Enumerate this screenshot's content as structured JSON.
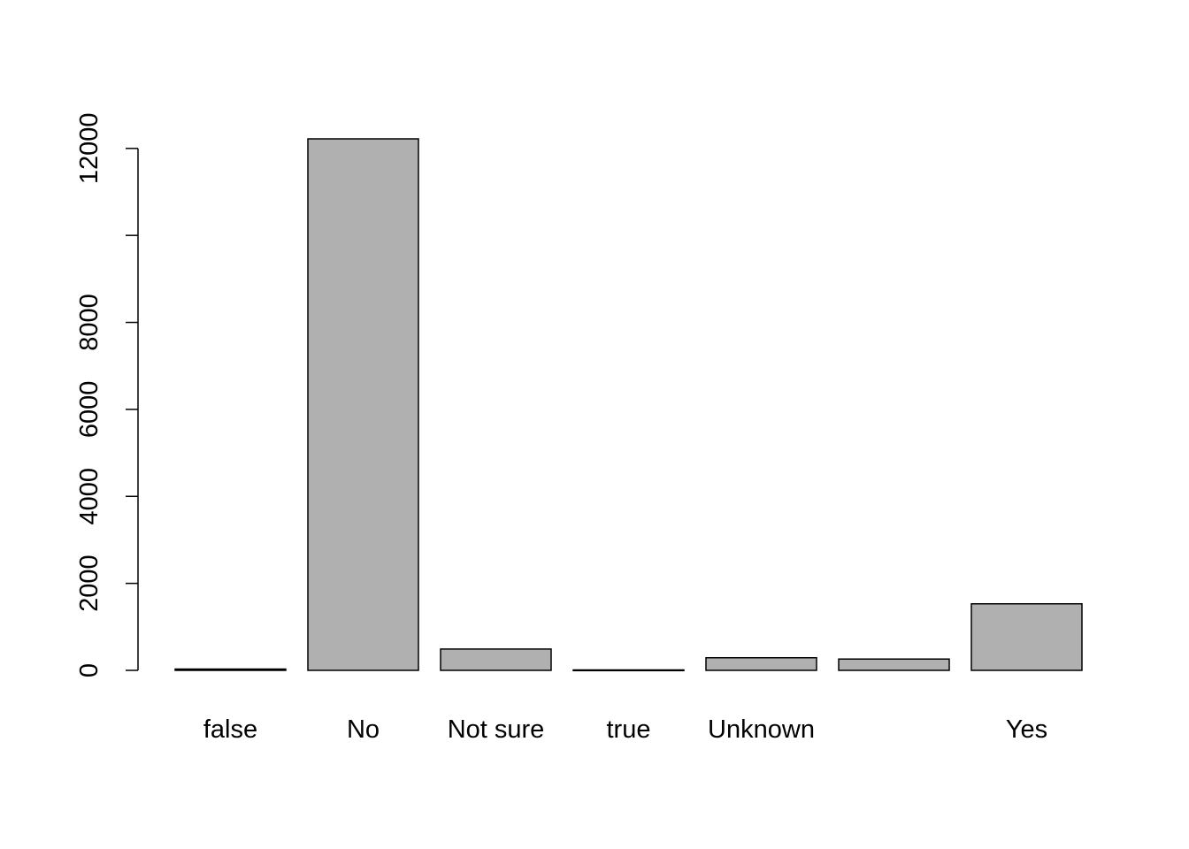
{
  "chart_data": {
    "type": "bar",
    "title": "",
    "xlabel": "",
    "ylabel": "",
    "categories": [
      "false",
      "No",
      "Not sure",
      "true",
      "Unknown",
      "",
      "Yes"
    ],
    "values": [
      30,
      12220,
      490,
      10,
      290,
      260,
      1530
    ],
    "ylim": [
      0,
      12220
    ],
    "yticks": [
      0,
      2000,
      4000,
      6000,
      8000,
      10000,
      12000
    ],
    "ytick_labels": [
      "0",
      "2000",
      "4000",
      "6000",
      "8000",
      "",
      "12000"
    ],
    "grid": false,
    "legend": "none",
    "colors": {
      "bar_fill": "#b0b0b0",
      "bar_stroke": "#000000",
      "axis": "#000000"
    }
  }
}
